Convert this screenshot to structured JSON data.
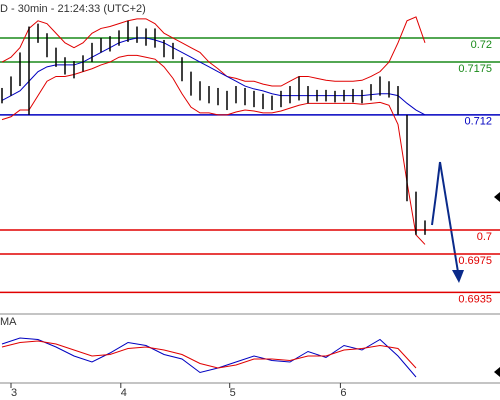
{
  "chart_data": {
    "type": "ohlc",
    "title": "D - 30min - 21:24:33 (UTC+2)",
    "x": [
      0,
      1,
      2,
      3,
      4,
      5,
      6,
      7,
      8,
      9,
      10,
      11,
      12,
      13,
      14,
      15,
      16,
      17,
      18,
      19,
      20,
      21,
      22,
      23,
      24,
      25,
      26,
      27,
      28,
      29,
      30,
      31,
      32,
      33,
      34,
      35,
      36,
      37,
      38,
      39,
      40,
      41,
      42,
      43,
      44,
      45,
      46,
      47
    ],
    "high": [
      0.7148,
      0.716,
      0.7185,
      0.7212,
      0.7215,
      0.7205,
      0.719,
      0.718,
      0.7176,
      0.7182,
      0.7195,
      0.72,
      0.7202,
      0.7208,
      0.7218,
      0.7212,
      0.721,
      0.721,
      0.7198,
      0.7195,
      0.718,
      0.7165,
      0.7155,
      0.715,
      0.7148,
      0.7145,
      0.715,
      0.7148,
      0.7145,
      0.7142,
      0.714,
      0.7145,
      0.715,
      0.716,
      0.715,
      0.7146,
      0.7146,
      0.7145,
      0.7146,
      0.7147,
      0.7146,
      0.7152,
      0.716,
      0.7155,
      0.715,
      0.712,
      0.704,
      0.701
    ],
    "low": [
      0.7132,
      0.714,
      0.715,
      0.712,
      0.7195,
      0.718,
      0.717,
      0.7162,
      0.7158,
      0.7165,
      0.7175,
      0.7185,
      0.7186,
      0.7192,
      0.7196,
      0.7195,
      0.7192,
      0.719,
      0.718,
      0.7178,
      0.7155,
      0.714,
      0.7135,
      0.7132,
      0.713,
      0.7125,
      0.7132,
      0.713,
      0.7128,
      0.7126,
      0.7125,
      0.7128,
      0.7132,
      0.7135,
      0.7132,
      0.7134,
      0.7134,
      0.7133,
      0.7134,
      0.7133,
      0.7132,
      0.7135,
      0.714,
      0.7138,
      0.712,
      0.703,
      0.6995,
      0.6995
    ],
    "color": "#000000",
    "series": [
      {
        "color": "#e00000",
        "values": [
          0.7175,
          0.718,
          0.719,
          0.721,
          0.7218,
          0.7215,
          0.7205,
          0.7195,
          0.719,
          0.7195,
          0.7205,
          0.721,
          0.7212,
          0.7215,
          0.7218,
          0.722,
          0.722,
          0.7215,
          0.7205,
          0.72,
          0.7195,
          0.719,
          0.7185,
          0.7175,
          0.7168,
          0.716,
          0.7158,
          0.7155,
          0.7155,
          0.7152,
          0.715,
          0.715,
          0.7155,
          0.716,
          0.716,
          0.7158,
          0.7156,
          0.7155,
          0.7155,
          0.7155,
          0.7156,
          0.716,
          0.7165,
          0.7175,
          0.7195,
          0.7218,
          0.7222,
          0.7195
        ]
      },
      {
        "color": "#e00000",
        "values": [
          0.7115,
          0.7118,
          0.7125,
          0.7125,
          0.714,
          0.7155,
          0.716,
          0.716,
          0.7162,
          0.7165,
          0.7168,
          0.7172,
          0.7175,
          0.718,
          0.7182,
          0.7182,
          0.718,
          0.7178,
          0.717,
          0.7158,
          0.7142,
          0.7128,
          0.7122,
          0.7122,
          0.712,
          0.712,
          0.7123,
          0.7125,
          0.7124,
          0.7122,
          0.7122,
          0.7124,
          0.7127,
          0.713,
          0.7132,
          0.7132,
          0.7132,
          0.7132,
          0.7132,
          0.7132,
          0.7131,
          0.7132,
          0.7133,
          0.713,
          0.711,
          0.705,
          0.6995,
          0.6985
        ]
      },
      {
        "color": "#0000c0",
        "values": [
          0.7135,
          0.714,
          0.7145,
          0.7155,
          0.7165,
          0.717,
          0.7172,
          0.7172,
          0.7172,
          0.7175,
          0.718,
          0.7185,
          0.719,
          0.7195,
          0.7198,
          0.72,
          0.72,
          0.7198,
          0.7195,
          0.719,
          0.7185,
          0.718,
          0.7175,
          0.717,
          0.7165,
          0.716,
          0.7155,
          0.715,
          0.7147,
          0.7145,
          0.7142,
          0.714,
          0.714,
          0.714,
          0.714,
          0.714,
          0.714,
          0.714,
          0.714,
          0.714,
          0.714,
          0.7141,
          0.7142,
          0.7142,
          0.714,
          0.7132,
          0.7125,
          0.712
        ]
      }
    ],
    "levels": [
      {
        "value": 0.72,
        "color": "#1a8a1a"
      },
      {
        "value": 0.7175,
        "color": "#1a8a1a"
      },
      {
        "value": 0.712,
        "color": "#0000c0"
      },
      {
        "value": 0.7,
        "color": "#e00000"
      },
      {
        "value": 0.6975,
        "color": "#e00000"
      },
      {
        "value": 0.6935,
        "color": "#e00000"
      }
    ],
    "xlim": [
      0,
      55
    ],
    "ylim": [
      0.69167,
      0.72313
    ],
    "xticks": [
      {
        "value": 1,
        "label": "3"
      },
      {
        "value": 13.2,
        "label": "4"
      },
      {
        "value": 25.3,
        "label": "5"
      },
      {
        "value": 37.6,
        "label": "6"
      }
    ],
    "oscillator": {
      "label": "MA",
      "ylim": [
        -100,
        100
      ],
      "series": [
        {
          "color": "#0000c0",
          "values": [
            20,
            40,
            35,
            10,
            -20,
            -40,
            -10,
            25,
            15,
            -15,
            -30,
            -75,
            -60,
            -40,
            -20,
            -35,
            -40,
            -5,
            -25,
            15,
            0,
            35,
            -20,
            -90
          ]
        },
        {
          "color": "#e00000",
          "values": [
            10,
            25,
            30,
            20,
            0,
            -20,
            -15,
            5,
            10,
            0,
            -15,
            -45,
            -60,
            -50,
            -30,
            -30,
            -35,
            -20,
            -20,
            0,
            5,
            15,
            5,
            -60
          ]
        }
      ]
    }
  }
}
